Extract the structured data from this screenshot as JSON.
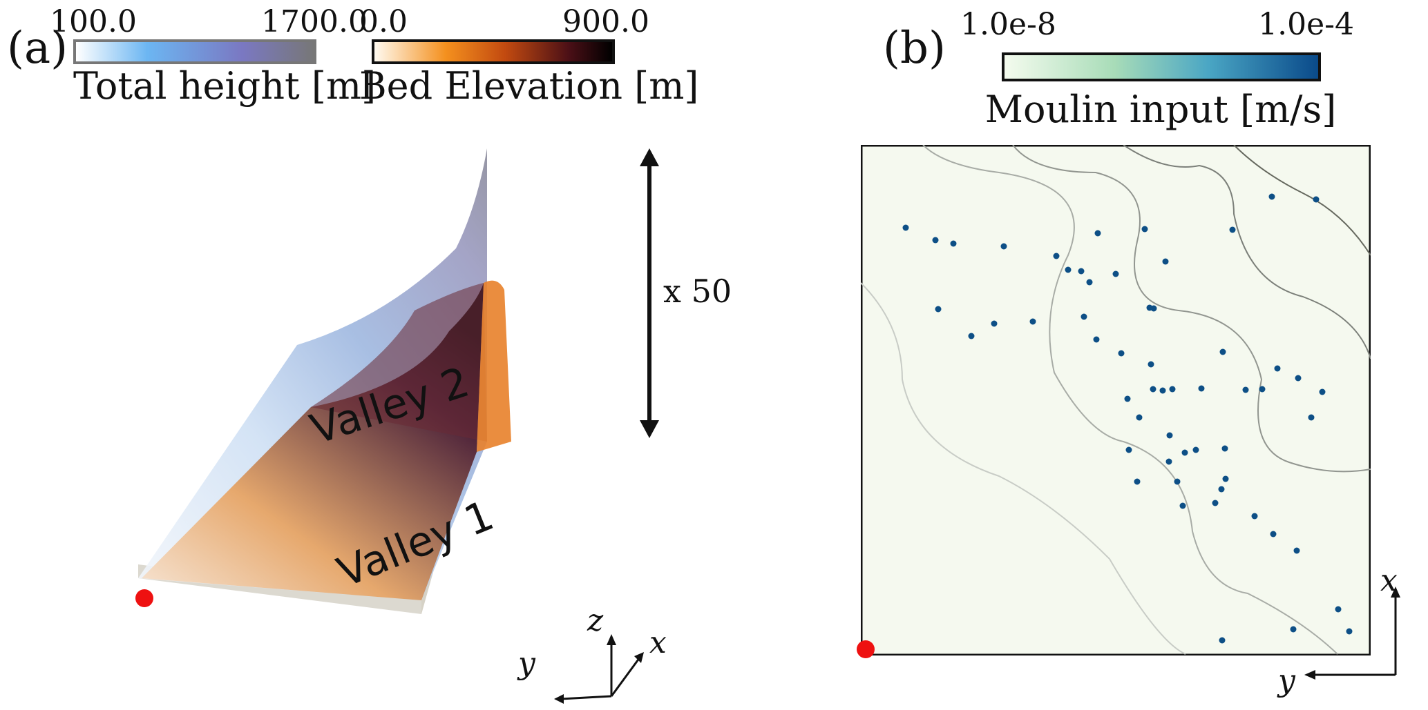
{
  "panel_a": {
    "label": "(a)",
    "colorbar_total_height": {
      "min": "100.0",
      "max": "1700.0",
      "title": "Total height [m]",
      "colors": [
        "#ffffff",
        "#6cb6f2",
        "#7a78c2",
        "#777777"
      ]
    },
    "colorbar_bed_elevation": {
      "min": "0.0",
      "max": "900.0",
      "title": "Bed Elevation [m]",
      "colors": [
        "#fffaf0",
        "#f4901e",
        "#c24a10",
        "#4a0f16",
        "#000000"
      ]
    },
    "exaggeration_label": "x 50",
    "valley_1_label": "Valley 1",
    "valley_2_label": "Valley 2",
    "axes": {
      "z": "z",
      "x": "x",
      "y": "y"
    }
  },
  "panel_b": {
    "label": "(b)",
    "colorbar_moulin_input": {
      "min": "1.0e-8",
      "max": "1.0e-4",
      "title": "Moulin input [m/s]",
      "colors": [
        "#f4fbee",
        "#a8dcb8",
        "#4aa6c4",
        "#0a4a8a"
      ]
    },
    "axes": {
      "x": "x",
      "y": "y"
    }
  },
  "colors": {
    "marker": "#ee1111",
    "map_background": "#f5f9ef",
    "moulin": "#0d4f86",
    "contour": "#8a8a8a"
  }
}
